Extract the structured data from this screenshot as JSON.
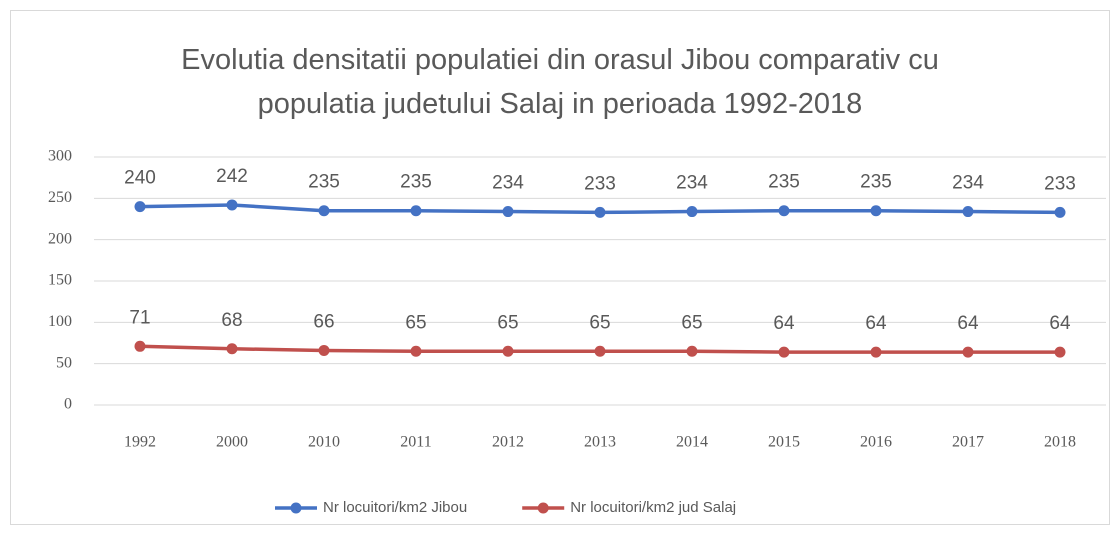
{
  "chart_data": {
    "type": "line",
    "title": "Evolutia densitatii populatiei din orasul Jibou comparativ cu populatia judetului Salaj in perioada 1992-2018",
    "categories": [
      "1992",
      "2000",
      "2010",
      "2011",
      "2012",
      "2013",
      "2014",
      "2015",
      "2016",
      "2017",
      "2018"
    ],
    "series": [
      {
        "name": "Nr locuitori/km2 Jibou",
        "color": "#4472c4",
        "values": [
          240,
          242,
          235,
          235,
          234,
          233,
          234,
          235,
          235,
          234,
          233
        ]
      },
      {
        "name": "Nr locuitori/km2 jud Salaj",
        "color": "#c0504d",
        "values": [
          71,
          68,
          66,
          65,
          65,
          65,
          65,
          64,
          64,
          64,
          64
        ]
      }
    ],
    "ylim": [
      0,
      300
    ],
    "yticks": [
      0,
      50,
      100,
      150,
      200,
      250,
      300
    ],
    "grid": true,
    "legend": "bottom"
  }
}
